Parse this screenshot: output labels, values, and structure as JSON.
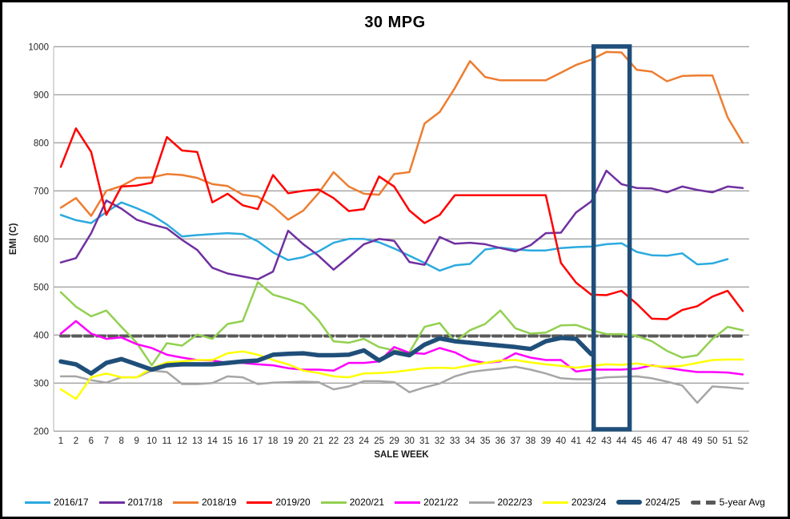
{
  "title": "30 MPG",
  "chart_data": {
    "type": "line",
    "title": "30 MPG",
    "xlabel": "SALE WEEK",
    "ylabel": "EMI (C)",
    "ylim": [
      200,
      1000
    ],
    "ytick_step": 100,
    "yticks": [
      200,
      300,
      400,
      500,
      600,
      700,
      800,
      900,
      1000
    ],
    "grid": "horizontal",
    "gridline_color": "#808080",
    "axis_line_color": "#BFBFBF",
    "tick_label_color": "#262626",
    "legend_position": "bottom",
    "categories": [
      "1",
      "2",
      "6",
      "7",
      "8",
      "9",
      "10",
      "11",
      "12",
      "13",
      "14",
      "15",
      "16",
      "17",
      "18",
      "19",
      "20",
      "21",
      "22",
      "23",
      "24",
      "25",
      "29",
      "30",
      "31",
      "32",
      "33",
      "34",
      "35",
      "36",
      "37",
      "38",
      "39",
      "40",
      "41",
      "42",
      "43",
      "44",
      "45",
      "46",
      "47",
      "48",
      "49",
      "50",
      "51",
      "52"
    ],
    "series": [
      {
        "name": "2016/17",
        "color": "#2BAADF",
        "width": 2.5,
        "values": [
          650,
          639,
          633,
          656,
          676,
          664,
          650,
          630,
          605,
          608,
          610,
          612,
          610,
          595,
          572,
          556,
          562,
          574,
          592,
          600,
          600,
          593,
          580,
          565,
          550,
          534,
          545,
          548,
          578,
          582,
          578,
          576,
          576,
          581,
          583,
          584,
          589,
          591,
          573,
          566,
          565,
          570,
          547,
          549,
          558,
          null
        ]
      },
      {
        "name": "2017/18",
        "color": "#7030A0",
        "width": 2.5,
        "values": [
          551,
          560,
          612,
          680,
          663,
          640,
          630,
          622,
          598,
          577,
          540,
          528,
          522,
          516,
          532,
          617,
          589,
          565,
          536,
          562,
          589,
          600,
          596,
          552,
          546,
          604,
          590,
          592,
          589,
          581,
          574,
          587,
          612,
          613,
          655,
          678,
          742,
          714,
          706,
          705,
          697,
          709,
          702,
          697,
          709,
          706
        ]
      },
      {
        "name": "2018/19",
        "color": "#ED7D31",
        "width": 2.5,
        "values": [
          665,
          685,
          648,
          700,
          710,
          727,
          728,
          735,
          733,
          727,
          714,
          710,
          692,
          688,
          668,
          640,
          659,
          695,
          739,
          709,
          694,
          692,
          735,
          739,
          840,
          864,
          914,
          970,
          937,
          930,
          930,
          930,
          930,
          946,
          962,
          973,
          989,
          988,
          952,
          948,
          928,
          939,
          940,
          940,
          853,
          800
        ]
      },
      {
        "name": "2019/20",
        "color": "#FF0000",
        "width": 2.5,
        "values": [
          750,
          830,
          781,
          650,
          709,
          711,
          717,
          812,
          784,
          781,
          676,
          694,
          670,
          662,
          733,
          695,
          700,
          703,
          685,
          658,
          662,
          730,
          709,
          659,
          633,
          650,
          691,
          691,
          691,
          691,
          691,
          691,
          691,
          550,
          509,
          484,
          483,
          492,
          465,
          434,
          433,
          452,
          460,
          480,
          492,
          450
        ]
      },
      {
        "name": "2020/21",
        "color": "#92D050",
        "width": 2.5,
        "values": [
          489,
          459,
          439,
          451,
          417,
          384,
          337,
          383,
          378,
          401,
          392,
          423,
          429,
          510,
          484,
          475,
          464,
          431,
          387,
          384,
          392,
          375,
          368,
          364,
          417,
          425,
          386,
          410,
          423,
          451,
          414,
          403,
          405,
          420,
          421,
          410,
          402,
          402,
          398,
          387,
          367,
          353,
          358,
          392,
          417,
          410
        ]
      },
      {
        "name": "2021/22",
        "color": "#FF00FF",
        "width": 2.5,
        "values": [
          403,
          429,
          403,
          392,
          395,
          381,
          373,
          359,
          353,
          348,
          347,
          342,
          342,
          339,
          337,
          331,
          328,
          328,
          326,
          342,
          342,
          345,
          375,
          363,
          361,
          373,
          364,
          348,
          342,
          345,
          362,
          353,
          348,
          348,
          324,
          328,
          328,
          328,
          330,
          337,
          332,
          327,
          323,
          323,
          322,
          318
        ]
      },
      {
        "name": "2022/23",
        "color": "#A6A6A6",
        "width": 2.5,
        "values": [
          314,
          314,
          306,
          301,
          312,
          312,
          326,
          323,
          298,
          298,
          300,
          314,
          312,
          298,
          301,
          302,
          303,
          302,
          287,
          293,
          304,
          304,
          302,
          281,
          291,
          299,
          314,
          323,
          327,
          330,
          334,
          328,
          320,
          310,
          308,
          308,
          312,
          313,
          314,
          310,
          303,
          295,
          259,
          293,
          291,
          288
        ]
      },
      {
        "name": "2023/24",
        "color": "#FFFF00",
        "width": 2.5,
        "values": [
          287,
          267,
          312,
          320,
          312,
          312,
          331,
          343,
          345,
          348,
          348,
          362,
          366,
          359,
          348,
          339,
          326,
          321,
          314,
          312,
          320,
          321,
          323,
          327,
          331,
          332,
          331,
          337,
          342,
          347,
          348,
          343,
          339,
          336,
          332,
          336,
          339,
          338,
          341,
          336,
          334,
          336,
          342,
          348,
          349,
          349
        ]
      },
      {
        "name": "2024/25",
        "color": "#1F4E79",
        "width": 5.5,
        "values": [
          345,
          339,
          320,
          342,
          350,
          339,
          328,
          337,
          339,
          339,
          339,
          342,
          345,
          347,
          359,
          361,
          362,
          358,
          358,
          359,
          368,
          347,
          364,
          358,
          380,
          393,
          387,
          384,
          381,
          378,
          375,
          371,
          387,
          394,
          392,
          360,
          null,
          null,
          null,
          null,
          null,
          null,
          null,
          null,
          null,
          null
        ]
      },
      {
        "name": "5-year Avg",
        "color": "#595959",
        "width": 4,
        "dash": [
          10,
          5
        ],
        "values": [
          398,
          398,
          398,
          398,
          398,
          398,
          398,
          398,
          398,
          398,
          398,
          398,
          398,
          398,
          398,
          398,
          398,
          398,
          398,
          398,
          398,
          398,
          398,
          398,
          398,
          398,
          398,
          398,
          398,
          398,
          398,
          398,
          398,
          398,
          398,
          398,
          398,
          398,
          398,
          398,
          398,
          398,
          398,
          398,
          398,
          398
        ]
      }
    ],
    "highlight_box": {
      "from_category": "42",
      "to_category": "44",
      "color": "#1F4E79"
    }
  }
}
